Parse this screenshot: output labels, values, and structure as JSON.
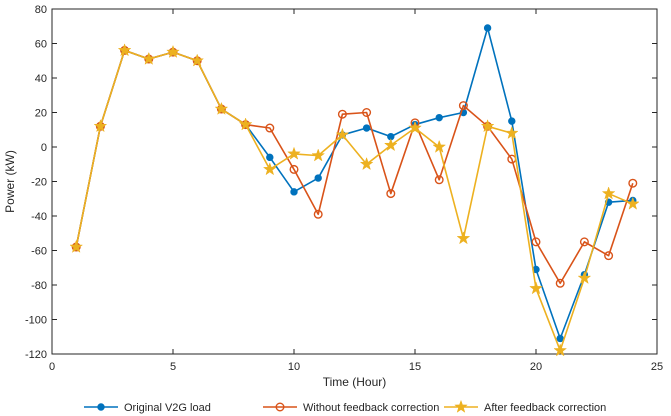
{
  "chart_data": {
    "type": "line",
    "xlabel": "Time (Hour)",
    "ylabel": "Power (kW)",
    "xlim": [
      0,
      25
    ],
    "ylim": [
      -120,
      80
    ],
    "xticks": [
      "0",
      "5",
      "10",
      "15",
      "20",
      "25"
    ],
    "yticks": [
      "80",
      "60",
      "40",
      "20",
      "0",
      "-20",
      "-40",
      "-60",
      "-80",
      "-100",
      "-120"
    ],
    "legend_position": "bottom",
    "x": [
      1,
      2,
      3,
      4,
      5,
      6,
      7,
      8,
      9,
      10,
      11,
      12,
      13,
      14,
      15,
      16,
      17,
      18,
      19,
      20,
      21,
      22,
      23,
      24
    ],
    "series": [
      {
        "name": "Original V2G load",
        "color": "#0072BD",
        "marker": "dot",
        "values": [
          -58,
          12,
          56,
          51,
          55,
          50,
          22,
          13,
          -6,
          -26,
          -18,
          7,
          11,
          6,
          13,
          17,
          20,
          69,
          15,
          -71,
          -111,
          -74,
          -32,
          -31
        ]
      },
      {
        "name": "Without feedback correction",
        "color": "#D95319",
        "marker": "circle",
        "values": [
          -58,
          12,
          56,
          51,
          55,
          50,
          22,
          13,
          11,
          -13,
          -39,
          19,
          20,
          -27,
          14,
          -19,
          24,
          12,
          -7,
          -55,
          -79,
          -55,
          -63,
          -21
        ]
      },
      {
        "name": "After feedback correction",
        "color": "#EDB120",
        "marker": "star",
        "values": [
          -58,
          12,
          56,
          51,
          55,
          50,
          22,
          13,
          -13,
          -4,
          -5,
          7,
          -10,
          1,
          11,
          0,
          -53,
          12,
          8,
          -82,
          -118,
          -76,
          -27,
          -33
        ]
      }
    ]
  }
}
